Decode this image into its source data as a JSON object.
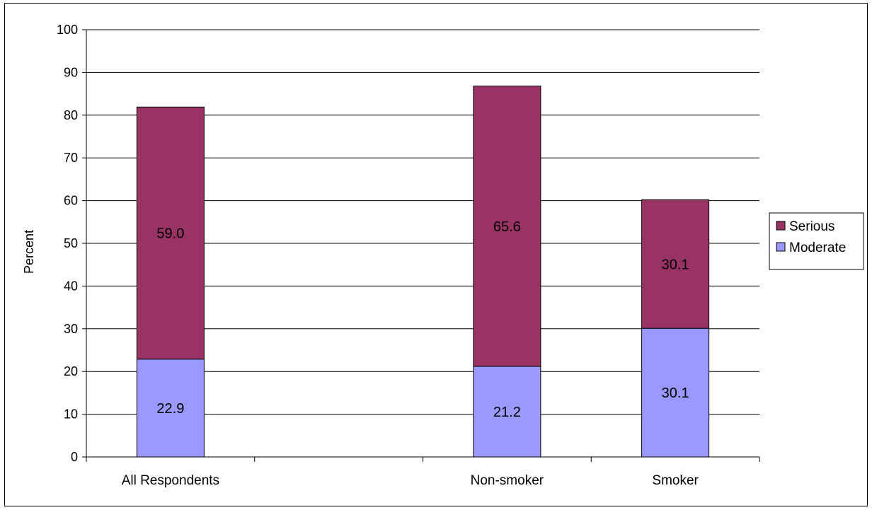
{
  "chart_data": {
    "type": "bar",
    "stacked": true,
    "categories": [
      "All Respondents",
      "",
      "Non-smoker",
      "Smoker"
    ],
    "series": [
      {
        "name": "Moderate",
        "color": "#9999ff",
        "values": [
          22.9,
          null,
          21.2,
          30.1
        ]
      },
      {
        "name": "Serious",
        "color": "#993366",
        "values": [
          59.0,
          null,
          65.6,
          30.1
        ]
      }
    ],
    "data_labels": {
      "Moderate": [
        "22.9",
        null,
        "21.2",
        "30.1"
      ],
      "Serious": [
        "59.0",
        null,
        "65.6",
        "30.1"
      ]
    },
    "title": "",
    "xlabel": "",
    "ylabel": "Percent",
    "ylim": [
      0,
      100
    ],
    "yticks": [
      0,
      10,
      20,
      30,
      40,
      50,
      60,
      70,
      80,
      90,
      100
    ],
    "grid": true,
    "legend_position": "right",
    "legend": [
      "Serious",
      "Moderate"
    ]
  }
}
